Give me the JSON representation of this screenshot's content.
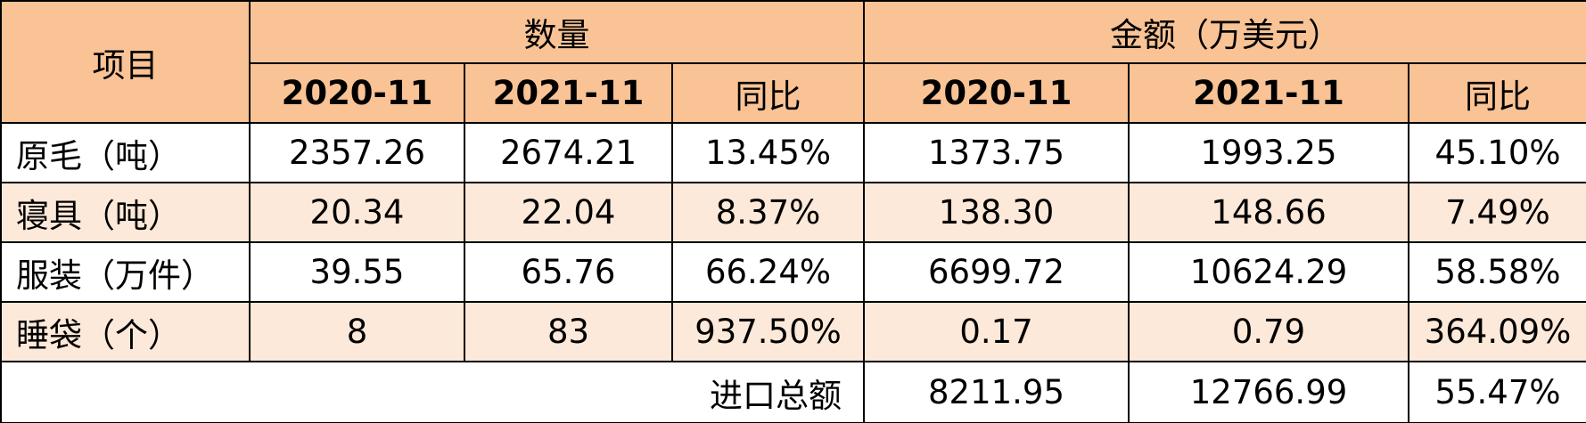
{
  "header": {
    "item": "项目",
    "groups": [
      "数量",
      "金额（万美元）"
    ],
    "sub_columns": [
      "2020-11",
      "2021-11",
      "同比",
      "2020-11",
      "2021-11",
      "同比"
    ]
  },
  "table": {
    "rows": [
      [
        "原毛（吨）",
        "2357.26",
        "2674.21",
        "13.45%",
        "1373.75",
        "1993.25",
        "45.10%"
      ],
      [
        "寝具（吨）",
        "20.34",
        "22.04",
        "8.37%",
        "138.30",
        "148.66",
        "7.49%"
      ],
      [
        "服装（万件）",
        "39.55",
        "65.76",
        "66.24%",
        "6699.72",
        "10624.29",
        "58.58%"
      ],
      [
        "睡袋（个）",
        "8",
        "83",
        "937.50%",
        "0.17",
        "0.79",
        "364.09%"
      ]
    ]
  },
  "total": {
    "label": "进口总额",
    "values": [
      "8211.95",
      "12766.99",
      "55.47%"
    ]
  }
}
